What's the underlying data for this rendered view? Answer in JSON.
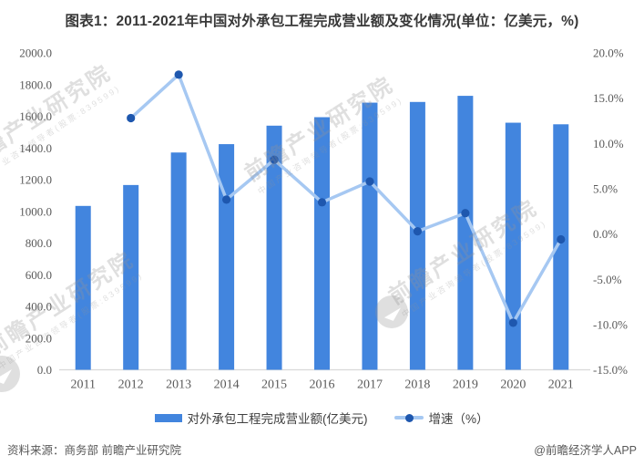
{
  "title": "图表1：2011-2021年中国对外承包工程完成营业额及变化情况(单位：亿美元，%)",
  "legend": {
    "items": [
      {
        "label": "对外承包工程完成营业额(亿美元)",
        "marker": "bar-swatch"
      },
      {
        "label": "增速（%）",
        "marker": "line-dot-swatch"
      }
    ]
  },
  "footer": {
    "source": "资料来源：商务部 前瞻产业研究院",
    "credit": "@前瞻经济学人APP"
  },
  "watermark": {
    "text": "前瞻产业研究院",
    "subtext": "中国产业咨询领导者(股票:839599)"
  },
  "colors": {
    "bar": "#4285DE",
    "line": "#A6C8F2",
    "marker": "#1E57AE",
    "axis_text": "#595959",
    "axis_line": "#D9D9D9",
    "title_text": "#383838",
    "legend_text": "#404040",
    "footer_text": "#595959",
    "watermark": "rgba(150,150,150,0.30)"
  },
  "chart_data": {
    "type": "bar",
    "title": "图表1：2011-2021年中国对外承包工程完成营业额及变化情况(单位：亿美元，%)",
    "categories": [
      "2011",
      "2012",
      "2013",
      "2014",
      "2015",
      "2016",
      "2017",
      "2018",
      "2019",
      "2020",
      "2021"
    ],
    "series": [
      {
        "name": "对外承包工程完成营业额(亿美元)",
        "type": "bar",
        "axis": "left",
        "values": [
          1034.2,
          1166.2,
          1371.4,
          1424.1,
          1540.7,
          1594.2,
          1685.9,
          1690.4,
          1729.0,
          1559.4,
          1549.4
        ]
      },
      {
        "name": "增速（%）",
        "type": "line",
        "axis": "right",
        "values": [
          null,
          12.8,
          17.6,
          3.8,
          8.2,
          3.5,
          5.8,
          0.3,
          2.3,
          -9.8,
          -0.6
        ]
      }
    ],
    "left_axis": {
      "min": 0,
      "max": 2000,
      "step": 200,
      "ticks": [
        "2000.0",
        "1800.0",
        "1600.0",
        "1400.0",
        "1200.0",
        "1000.0",
        "800.0",
        "600.0",
        "400.0",
        "200.0",
        "0.0"
      ]
    },
    "right_axis": {
      "min": -15,
      "max": 20,
      "step": 5,
      "ticks": [
        "20.0%",
        "15.0%",
        "10.0%",
        "5.0%",
        "0.0%",
        "-5.0%",
        "-10.0%",
        "-15.0%"
      ]
    },
    "grid": false,
    "legend_position": "bottom"
  }
}
